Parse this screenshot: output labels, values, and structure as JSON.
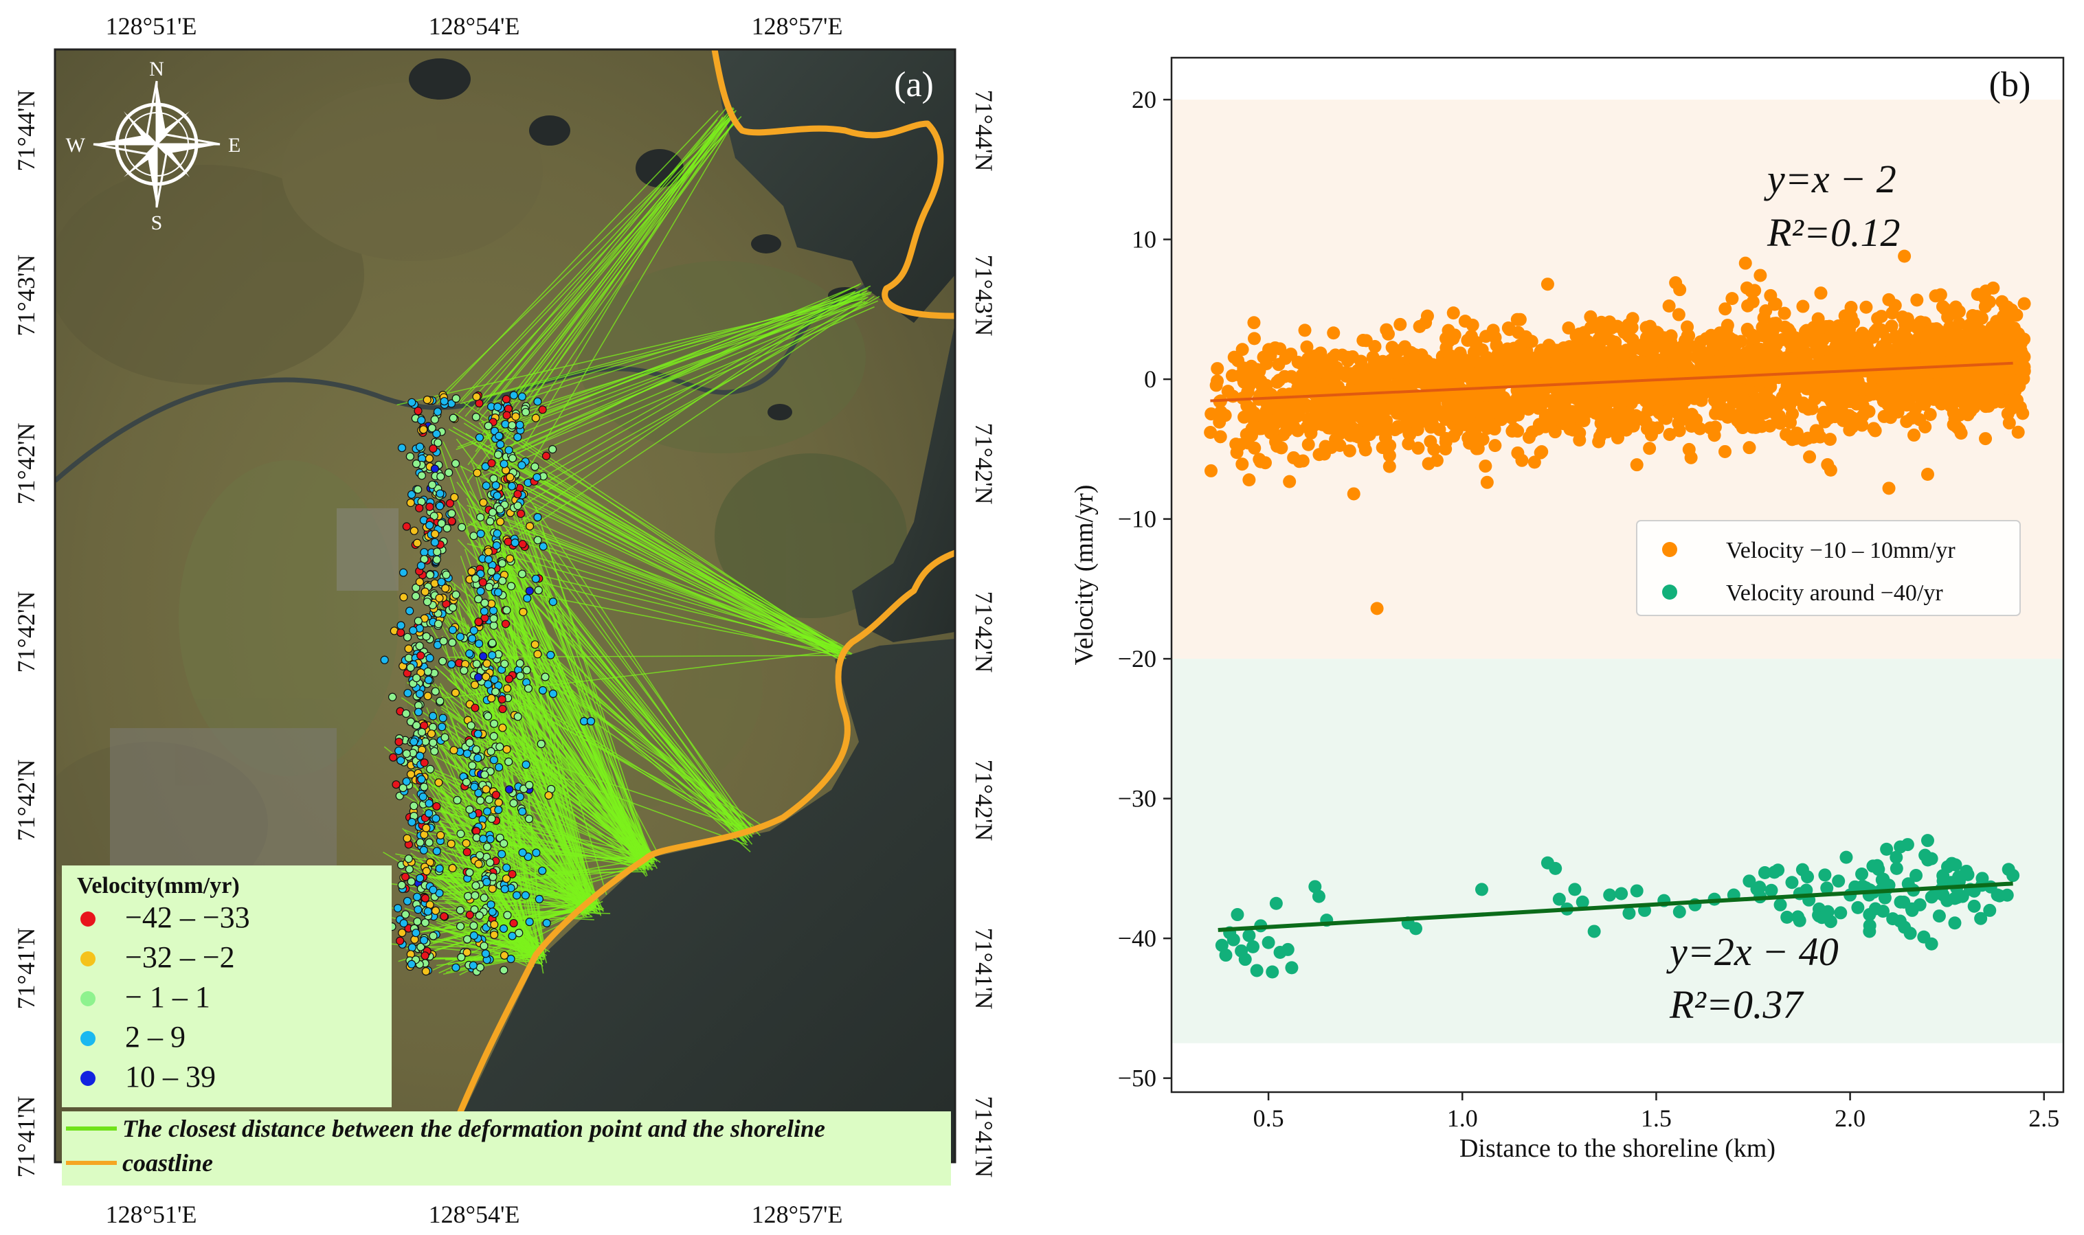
{
  "panel_a": {
    "label": "(a)",
    "top_lon_ticks": [
      "128°51'E",
      "128°54'E",
      "128°57'E"
    ],
    "bottom_lon_ticks": [
      "128°51'E",
      "128°54'E",
      "128°57'E"
    ],
    "left_lat_ticks": [
      "71°44'N",
      "71°43'N",
      "71°42'N",
      "71°42'N",
      "71°42'N",
      "71°41'N",
      "71°41'N"
    ],
    "right_lat_ticks": [
      "71°44'N",
      "71°43'N",
      "71°42'N",
      "71°42'N",
      "71°42'N",
      "71°41'N",
      "71°41'N"
    ],
    "compass": {
      "n": "N",
      "s": "S",
      "e": "E",
      "w": "W"
    },
    "legend_title": "Velocity(mm/yr)",
    "legend_items": [
      {
        "label": "−42 – −33",
        "color": "#e8141c"
      },
      {
        "label": "−32 – −2",
        "color": "#f5c21b"
      },
      {
        "label": "− 1 – 1",
        "color": "#8ef28e"
      },
      {
        "label": " 2 – 9",
        "color": "#1ab8f0"
      },
      {
        "label": "10 – 39",
        "color": "#1222e0"
      }
    ],
    "line_legend": [
      {
        "label": "The closest distance between the deformation point and the shoreline",
        "color": "#6fe21a"
      },
      {
        "label": "coastline",
        "color": "#f5a623"
      }
    ],
    "colors": {
      "ray": "#7cf21c",
      "coast": "#f5a623",
      "legend_bg": "#dcfcc4"
    }
  },
  "chart_data": {
    "type": "scatter",
    "panel_label": "(b)",
    "xlabel": "Distance to the shoreline (km)",
    "ylabel": "Velocity (mm/yr)",
    "xlim": [
      0.25,
      2.55
    ],
    "ylim": [
      -51,
      23
    ],
    "xticks": [
      0.5,
      1.0,
      1.5,
      2.0,
      2.5
    ],
    "xtick_labels": [
      "0.5",
      "1.0",
      "1.5",
      "2.0",
      "2.5"
    ],
    "yticks": [
      20,
      10,
      0,
      -10,
      -20,
      -30,
      -40,
      -50
    ],
    "ytick_labels": [
      "20",
      "10",
      "0",
      "−10",
      "−20",
      "−30",
      "−40",
      "−50"
    ],
    "bands": [
      {
        "y0": -20,
        "y1": 20,
        "color": "#fdf3ea"
      },
      {
        "y0": -47.5,
        "y1": -20,
        "color": "#edf7f0"
      }
    ],
    "series": [
      {
        "name": "Velocity −10 – 10mm/yr",
        "color": "#ff8c00",
        "fit_color": "#e05a10",
        "x_range": [
          0.35,
          2.45
        ],
        "count": 2600,
        "fit": {
          "slope": 1.3,
          "intercept": -2.0,
          "x0": 0.35,
          "x1": 2.42
        },
        "spread": 2.0,
        "outliers": [
          [
            0.78,
            -16.4
          ],
          [
            1.73,
            8.3
          ],
          [
            2.14,
            8.8
          ],
          [
            1.22,
            6.8
          ],
          [
            0.72,
            -8.2
          ],
          [
            1.95,
            -6.5
          ],
          [
            2.1,
            -7.8
          ],
          [
            0.45,
            -7.2
          ],
          [
            1.55,
            6.9
          ],
          [
            2.2,
            -6.8
          ]
        ],
        "equation": "y=x − 2",
        "r2": "R²=0.12"
      },
      {
        "name": "Velocity around −40/yr",
        "color": "#12b07a",
        "fit_color": "#0b6b1a",
        "x_range": [
          0.37,
          2.42
        ],
        "count": 150,
        "fit": {
          "slope": 1.62,
          "intercept": -40.0,
          "x0": 0.37,
          "x1": 2.42
        },
        "spread": 1.3,
        "points": [
          [
            0.38,
            -40.5
          ],
          [
            0.39,
            -41.2
          ],
          [
            0.4,
            -39.6
          ],
          [
            0.41,
            -40.1
          ],
          [
            0.42,
            -38.3
          ],
          [
            0.43,
            -40.9
          ],
          [
            0.44,
            -41.5
          ],
          [
            0.45,
            -39.8
          ],
          [
            0.46,
            -40.6
          ],
          [
            0.47,
            -42.3
          ],
          [
            0.48,
            -39.1
          ],
          [
            0.5,
            -40.3
          ],
          [
            0.51,
            -42.4
          ],
          [
            0.52,
            -37.5
          ],
          [
            0.53,
            -41.0
          ],
          [
            0.55,
            -40.8
          ],
          [
            0.56,
            -42.1
          ],
          [
            0.62,
            -36.3
          ],
          [
            0.63,
            -37.0
          ],
          [
            0.65,
            -38.7
          ],
          [
            0.86,
            -38.9
          ],
          [
            0.88,
            -39.3
          ],
          [
            1.05,
            -36.5
          ],
          [
            1.22,
            -34.6
          ],
          [
            1.24,
            -35.0
          ],
          [
            1.25,
            -37.2
          ],
          [
            1.27,
            -37.9
          ],
          [
            1.29,
            -36.5
          ],
          [
            1.31,
            -37.4
          ],
          [
            1.34,
            -39.5
          ],
          [
            1.38,
            -36.9
          ],
          [
            1.41,
            -36.8
          ],
          [
            1.43,
            -38.2
          ],
          [
            1.45,
            -36.6
          ],
          [
            1.47,
            -38.0
          ],
          [
            1.52,
            -37.3
          ],
          [
            1.56,
            -38.1
          ],
          [
            1.6,
            -37.6
          ],
          [
            1.65,
            -37.2
          ],
          [
            1.7,
            -36.9
          ],
          [
            1.74,
            -35.9
          ],
          [
            1.78,
            -35.3
          ],
          [
            1.82,
            -37.6
          ],
          [
            1.85,
            -36.0
          ],
          [
            1.87,
            -36.8
          ],
          [
            1.89,
            -35.6
          ],
          [
            1.92,
            -37.9
          ],
          [
            1.94,
            -36.4
          ],
          [
            1.95,
            -38.8
          ],
          [
            1.97,
            -35.9
          ],
          [
            1.99,
            -34.2
          ],
          [
            2.0,
            -36.9
          ],
          [
            2.02,
            -37.8
          ],
          [
            2.03,
            -35.4
          ],
          [
            2.05,
            -38.3
          ],
          [
            2.06,
            -36.7
          ],
          [
            2.07,
            -34.8
          ],
          [
            2.09,
            -37.1
          ],
          [
            2.1,
            -36.2
          ],
          [
            2.11,
            -38.6
          ],
          [
            2.12,
            -35.0
          ],
          [
            2.13,
            -37.4
          ],
          [
            2.14,
            -39.2
          ],
          [
            2.15,
            -36.1
          ],
          [
            2.16,
            -38.0
          ],
          [
            2.17,
            -35.5
          ],
          [
            2.18,
            -37.6
          ],
          [
            2.19,
            -39.9
          ],
          [
            2.2,
            -33.0
          ],
          [
            2.21,
            -34.3
          ],
          [
            2.22,
            -36.8
          ],
          [
            2.23,
            -38.4
          ],
          [
            2.24,
            -35.9
          ],
          [
            2.25,
            -37.3
          ],
          [
            2.26,
            -36.0
          ],
          [
            2.27,
            -38.9
          ],
          [
            2.28,
            -35.6
          ],
          [
            2.29,
            -37.0
          ],
          [
            2.3,
            -35.2
          ],
          [
            2.31,
            -36.5
          ],
          [
            2.32,
            -37.7
          ],
          [
            2.34,
            -36.2
          ],
          [
            2.36,
            -38.0
          ],
          [
            2.38,
            -36.9
          ],
          [
            2.42,
            -35.5
          ],
          [
            2.21,
            -40.4
          ],
          [
            2.05,
            -39.5
          ],
          [
            1.92,
            -38.4
          ]
        ],
        "equation": "y=2x − 40",
        "r2": "R²=0.37"
      }
    ]
  }
}
